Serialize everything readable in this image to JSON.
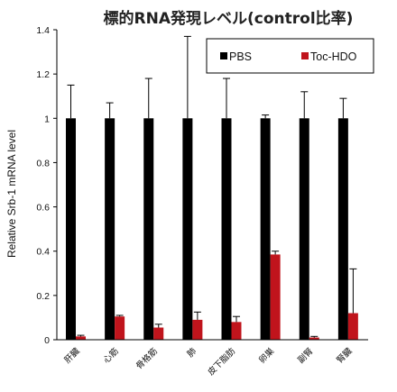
{
  "chart_data": {
    "type": "bar",
    "title": "標的RNA発現レベル(control比率)",
    "xlabel": "",
    "ylabel": "Relative Srb-1 mRNA level",
    "ylim": [
      0,
      1.4
    ],
    "yticks": [
      "0",
      "0.2",
      "0.4",
      "0.6",
      "0.8",
      "1",
      "1.2",
      "1.4"
    ],
    "categories": [
      "肝臓",
      "心筋",
      "骨格筋",
      "肺",
      "皮下脂肪",
      "卵巣",
      "副腎",
      "腎臓"
    ],
    "series": [
      {
        "name": "PBS",
        "color": "#000000",
        "values": [
          1,
          1,
          1,
          1,
          1,
          1,
          1,
          1
        ],
        "errors": [
          0.15,
          0.07,
          0.18,
          0.37,
          0.18,
          0.015,
          0.12,
          0.09
        ]
      },
      {
        "name": "Toc-HDO",
        "color": "#c0141c",
        "values": [
          0.015,
          0.105,
          0.055,
          0.09,
          0.08,
          0.385,
          0.01,
          0.12
        ],
        "errors": [
          0.005,
          0.005,
          0.015,
          0.035,
          0.025,
          0.015,
          0.005,
          0.2
        ]
      }
    ],
    "grid": false,
    "legend_position": "top-right"
  }
}
